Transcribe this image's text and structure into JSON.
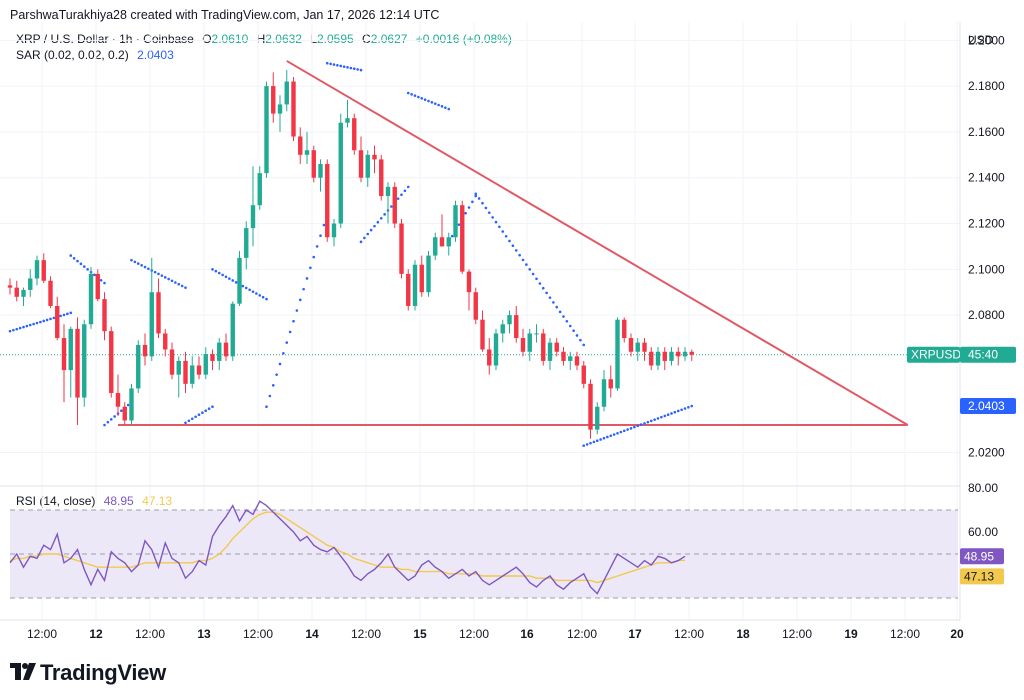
{
  "header": {
    "credit": "ParshwaTurakhiya28 created with TradingView.com, Jan 17, 2026 12:14 UTC"
  },
  "legend": {
    "symbol": "XRP / U.S. Dollar · 1h · Coinbase",
    "o_key": "O",
    "o": "2.0610",
    "h_key": "H",
    "h": "2.0632",
    "l_key": "L",
    "l": "2.0595",
    "c_key": "C",
    "c": "2.0627",
    "change": "+0.0016 (+0.08%)",
    "sar_label": "SAR (0.02, 0.02, 0.2)",
    "sar_value": "2.0403"
  },
  "rsi_legend": {
    "label": "RSI (14, close)",
    "rsi": "48.95",
    "ma": "47.13"
  },
  "currency": "USD",
  "price_badge": {
    "symbol": "XRPUSD",
    "countdown": "45:40"
  },
  "sar_badge": "2.0403",
  "rsi_badges": {
    "rsi": "48.95",
    "ma": "47.13"
  },
  "colors": {
    "up": "#22ab94",
    "down": "#f23645",
    "sar": "#2962ff",
    "trendline": "#e05a66",
    "rsi": "#7e57c2",
    "rsi_ma": "#f2c94c",
    "rsi_band": "#ede8f7"
  },
  "branding": {
    "logo_text": "TradingView"
  },
  "chart_data": [
    {
      "type": "candlestick",
      "title": "XRP / U.S. Dollar · 1h · Coinbase",
      "ylim": [
        2.008,
        2.208
      ],
      "y_ticks": [
        "2.2000",
        "2.1800",
        "2.1600",
        "2.1400",
        "2.1200",
        "2.1000",
        "2.0800",
        "2.0200"
      ],
      "x_tick_labels": [
        "12:00",
        "12",
        "12:00",
        "13",
        "12:00",
        "14",
        "12:00",
        "15",
        "12:00",
        "16",
        "12:00",
        "17",
        "12:00",
        "18",
        "12:00",
        "19",
        "12:00",
        "20"
      ],
      "last_price": 2.0627,
      "ohlc_samples": [
        [
          2.093,
          2.096,
          2.089,
          2.092
        ],
        [
          2.092,
          2.095,
          2.086,
          2.088
        ],
        [
          2.088,
          2.092,
          2.084,
          2.091
        ],
        [
          2.091,
          2.1,
          2.088,
          2.096
        ],
        [
          2.096,
          2.106,
          2.093,
          2.104
        ],
        [
          2.104,
          2.107,
          2.094,
          2.095
        ],
        [
          2.095,
          2.097,
          2.083,
          2.084
        ],
        [
          2.084,
          2.088,
          2.069,
          2.07
        ],
        [
          2.07,
          2.076,
          2.042,
          2.056
        ],
        [
          2.056,
          2.075,
          2.044,
          2.074
        ],
        [
          2.074,
          2.079,
          2.032,
          2.044
        ],
        [
          2.044,
          2.078,
          2.04,
          2.076
        ],
        [
          2.076,
          2.101,
          2.074,
          2.098
        ],
        [
          2.098,
          2.1,
          2.086,
          2.087
        ],
        [
          2.087,
          2.09,
          2.069,
          2.073
        ],
        [
          2.073,
          2.075,
          2.044,
          2.046
        ],
        [
          2.046,
          2.054,
          2.036,
          2.04
        ],
        [
          2.04,
          2.042,
          2.032,
          2.034
        ],
        [
          2.034,
          2.05,
          2.032,
          2.048
        ],
        [
          2.048,
          2.069,
          2.046,
          2.067
        ],
        [
          2.067,
          2.072,
          2.058,
          2.062
        ],
        [
          2.062,
          2.105,
          2.06,
          2.09
        ],
        [
          2.09,
          2.096,
          2.07,
          2.072
        ],
        [
          2.072,
          2.074,
          2.062,
          2.065
        ],
        [
          2.065,
          2.068,
          2.052,
          2.054
        ],
        [
          2.054,
          2.062,
          2.044,
          2.06
        ],
        [
          2.06,
          2.064,
          2.046,
          2.05
        ],
        [
          2.05,
          2.062,
          2.048,
          2.058
        ],
        [
          2.058,
          2.062,
          2.052,
          2.054
        ],
        [
          2.054,
          2.066,
          2.052,
          2.063
        ],
        [
          2.063,
          2.065,
          2.056,
          2.06
        ],
        [
          2.06,
          2.07,
          2.056,
          2.068
        ],
        [
          2.068,
          2.072,
          2.06,
          2.062
        ],
        [
          2.062,
          2.086,
          2.06,
          2.085
        ],
        [
          2.085,
          2.108,
          2.084,
          2.105
        ],
        [
          2.105,
          2.121,
          2.1,
          2.118
        ],
        [
          2.118,
          2.145,
          2.11,
          2.128
        ],
        [
          2.128,
          2.145,
          2.126,
          2.142
        ],
        [
          2.142,
          2.182,
          2.14,
          2.18
        ],
        [
          2.18,
          2.186,
          2.164,
          2.168
        ],
        [
          2.168,
          2.176,
          2.16,
          2.172
        ],
        [
          2.172,
          2.187,
          2.169,
          2.182
        ],
        [
          2.182,
          2.184,
          2.156,
          2.158
        ],
        [
          2.158,
          2.162,
          2.146,
          2.15
        ],
        [
          2.15,
          2.16,
          2.146,
          2.152
        ],
        [
          2.152,
          2.154,
          2.138,
          2.14
        ],
        [
          2.14,
          2.148,
          2.134,
          2.146
        ],
        [
          2.146,
          2.148,
          2.112,
          2.114
        ],
        [
          2.114,
          2.122,
          2.11,
          2.12
        ],
        [
          2.12,
          2.168,
          2.118,
          2.164
        ],
        [
          2.164,
          2.174,
          2.162,
          2.166
        ],
        [
          2.166,
          2.168,
          2.15,
          2.152
        ],
        [
          2.152,
          2.158,
          2.138,
          2.14
        ],
        [
          2.14,
          2.152,
          2.136,
          2.15
        ],
        [
          2.15,
          2.154,
          2.142,
          2.148
        ],
        [
          2.148,
          2.15,
          2.13,
          2.132
        ],
        [
          2.132,
          2.138,
          2.12,
          2.136
        ],
        [
          2.136,
          2.138,
          2.118,
          2.12
        ],
        [
          2.12,
          2.122,
          2.096,
          2.098
        ],
        [
          2.098,
          2.1,
          2.082,
          2.084
        ],
        [
          2.084,
          2.104,
          2.082,
          2.102
        ],
        [
          2.102,
          2.106,
          2.088,
          2.09
        ],
        [
          2.09,
          2.108,
          2.088,
          2.106
        ],
        [
          2.106,
          2.116,
          2.104,
          2.114
        ],
        [
          2.114,
          2.124,
          2.11,
          2.11
        ],
        [
          2.11,
          2.116,
          2.106,
          2.114
        ],
        [
          2.114,
          2.13,
          2.112,
          2.128
        ],
        [
          2.128,
          2.13,
          2.098,
          2.099
        ],
        [
          2.099,
          2.1,
          2.082,
          2.09
        ],
        [
          2.09,
          2.092,
          2.076,
          2.078
        ],
        [
          2.078,
          2.082,
          2.064,
          2.065
        ],
        [
          2.065,
          2.07,
          2.054,
          2.058
        ],
        [
          2.058,
          2.074,
          2.056,
          2.072
        ],
        [
          2.072,
          2.078,
          2.068,
          2.076
        ],
        [
          2.076,
          2.082,
          2.072,
          2.08
        ],
        [
          2.08,
          2.084,
          2.068,
          2.07
        ],
        [
          2.07,
          2.074,
          2.062,
          2.064
        ],
        [
          2.064,
          2.074,
          2.06,
          2.072
        ],
        [
          2.072,
          2.076,
          2.068,
          2.072
        ],
        [
          2.072,
          2.074,
          2.058,
          2.06
        ],
        [
          2.06,
          2.07,
          2.056,
          2.068
        ],
        [
          2.068,
          2.07,
          2.062,
          2.064
        ],
        [
          2.064,
          2.066,
          2.058,
          2.06
        ],
        [
          2.06,
          2.064,
          2.056,
          2.062
        ],
        [
          2.062,
          2.064,
          2.056,
          2.058
        ],
        [
          2.058,
          2.06,
          2.048,
          2.05
        ],
        [
          2.05,
          2.052,
          2.026,
          2.03
        ],
        [
          2.03,
          2.042,
          2.028,
          2.04
        ],
        [
          2.04,
          2.056,
          2.038,
          2.052
        ],
        [
          2.052,
          2.058,
          2.044,
          2.048
        ],
        [
          2.048,
          2.079,
          2.047,
          2.078
        ],
        [
          2.078,
          2.079,
          2.068,
          2.07
        ],
        [
          2.07,
          2.072,
          2.062,
          2.064
        ],
        [
          2.064,
          2.07,
          2.06,
          2.068
        ],
        [
          2.068,
          2.07,
          2.06,
          2.064
        ],
        [
          2.064,
          2.066,
          2.056,
          2.058
        ],
        [
          2.058,
          2.066,
          2.056,
          2.064
        ],
        [
          2.064,
          2.066,
          2.056,
          2.06
        ],
        [
          2.06,
          2.066,
          2.058,
          2.064
        ],
        [
          2.064,
          2.066,
          2.058,
          2.062
        ],
        [
          2.062,
          2.066,
          2.06,
          2.064
        ],
        [
          2.064,
          2.065,
          2.06,
          2.0627
        ]
      ],
      "sar_segments": [
        {
          "from": [
            0,
            2.073
          ],
          "to": [
            9,
            2.081
          ],
          "side": "below"
        },
        {
          "from": [
            9,
            2.106
          ],
          "to": [
            14,
            2.094
          ],
          "side": "above"
        },
        {
          "from": [
            14,
            2.032
          ],
          "to": [
            18,
            2.042
          ],
          "side": "below"
        },
        {
          "from": [
            18,
            2.104
          ],
          "to": [
            26,
            2.092
          ],
          "side": "above"
        },
        {
          "from": [
            26,
            2.033
          ],
          "to": [
            30,
            2.04
          ],
          "side": "below"
        },
        {
          "from": [
            30,
            2.1
          ],
          "to": [
            38,
            2.087
          ],
          "side": "above"
        },
        {
          "from": [
            38,
            2.04
          ],
          "to": [
            47,
            2.124
          ],
          "side": "below"
        },
        {
          "from": [
            47,
            2.19
          ],
          "to": [
            52,
            2.187
          ],
          "side": "above"
        },
        {
          "from": [
            52,
            2.112
          ],
          "to": [
            59,
            2.136
          ],
          "side": "below"
        },
        {
          "from": [
            59,
            2.177
          ],
          "to": [
            65,
            2.17
          ],
          "side": "above"
        },
        {
          "from": [
            65,
            2.112
          ],
          "to": [
            69,
            2.132
          ],
          "side": "below"
        },
        {
          "from": [
            69,
            2.133
          ],
          "to": [
            85,
            2.067
          ],
          "side": "above"
        },
        {
          "from": [
            85,
            2.023
          ],
          "to": [
            101,
            2.0403
          ],
          "side": "below"
        }
      ],
      "trendlines": [
        {
          "from": [
            41,
            2.191
          ],
          "to": [
            133,
            2.032
          ]
        },
        {
          "from": [
            16,
            2.032
          ],
          "to": [
            133,
            2.032
          ]
        }
      ]
    },
    {
      "type": "line",
      "title": "RSI (14, close)",
      "ylim": [
        20,
        80
      ],
      "y_ticks": [
        "80.00",
        "60.00"
      ],
      "bands": [
        70,
        50,
        30
      ],
      "series": [
        {
          "name": "RSI",
          "values": [
            46,
            50,
            44,
            49,
            48,
            54,
            52,
            59,
            46,
            48,
            52,
            43,
            36,
            43,
            38,
            51,
            48,
            46,
            42,
            45,
            56,
            52,
            44,
            55,
            48,
            46,
            39,
            42,
            47,
            45,
            58,
            63,
            67,
            72,
            65,
            70,
            68,
            74,
            72,
            69,
            66,
            63,
            60,
            56,
            58,
            54,
            52,
            51,
            53,
            49,
            45,
            40,
            38,
            41,
            43,
            46,
            50,
            44,
            41,
            38,
            40,
            45,
            47,
            44,
            42,
            39,
            41,
            43,
            40,
            42,
            38,
            36,
            38,
            40,
            42,
            44,
            41,
            37,
            35,
            38,
            40,
            36,
            34,
            37,
            39,
            41,
            35,
            32,
            38,
            44,
            50,
            48,
            46,
            44,
            47,
            45,
            49,
            48,
            46,
            47,
            48.95
          ]
        },
        {
          "name": "MA",
          "values": [
            47,
            48,
            48,
            49,
            49,
            50,
            50,
            50,
            49,
            48,
            47,
            46,
            45,
            44,
            44,
            44,
            44,
            44,
            44,
            45,
            46,
            46,
            46,
            46,
            46,
            46,
            46,
            46,
            47,
            47,
            48,
            50,
            53,
            57,
            60,
            63,
            66,
            68,
            69,
            69,
            68,
            66,
            64,
            62,
            60,
            58,
            56,
            54,
            53,
            51,
            50,
            48,
            47,
            46,
            45,
            44,
            44,
            44,
            43,
            43,
            42,
            42,
            42,
            42,
            42,
            41,
            41,
            41,
            41,
            41,
            40,
            40,
            40,
            40,
            40,
            40,
            40,
            40,
            39,
            39,
            39,
            38,
            38,
            38,
            38,
            38,
            38,
            37,
            38,
            39,
            40,
            41,
            42,
            43,
            44,
            45,
            46,
            46,
            46,
            47,
            47.13
          ]
        }
      ]
    }
  ]
}
